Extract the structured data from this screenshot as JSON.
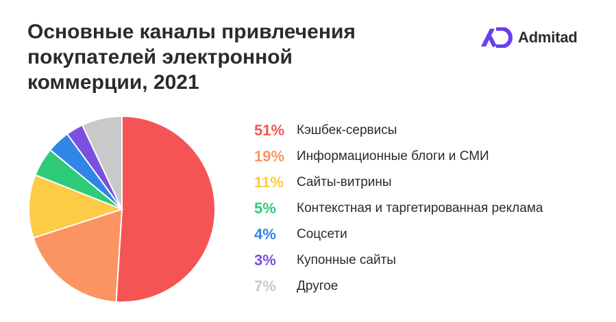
{
  "header": {
    "title_lines": [
      "Основные каналы привлечения",
      "покупателей электронной",
      "коммерции, 2021"
    ]
  },
  "brand": {
    "name": "Admitad",
    "color": "#6b3ef0"
  },
  "chart_data": {
    "type": "pie",
    "title": "Основные каналы привлечения покупателей электронной коммерции, 2021",
    "legend_position": "right",
    "start_angle": "12 o'clock, clockwise",
    "slices": [
      {
        "label": "Кэшбек-сервисы",
        "value": 51,
        "display": "51%",
        "color": "#f45554"
      },
      {
        "label": "Информационные блоги и СМИ",
        "value": 19,
        "display": "19%",
        "color": "#fb9363"
      },
      {
        "label": "Сайты-витрины",
        "value": 11,
        "display": "11%",
        "color": "#fdcb46"
      },
      {
        "label": "Контекстная и таргетированная реклама",
        "value": 5,
        "display": "5%",
        "color": "#2ecb78"
      },
      {
        "label": "Соцсети",
        "value": 4,
        "display": "4%",
        "color": "#2f86e6"
      },
      {
        "label": "Купонные сайты",
        "value": 3,
        "display": "3%",
        "color": "#7b4fe0"
      },
      {
        "label": "Другое",
        "value": 7,
        "display": "7%",
        "color": "#c9c9c9"
      }
    ]
  }
}
